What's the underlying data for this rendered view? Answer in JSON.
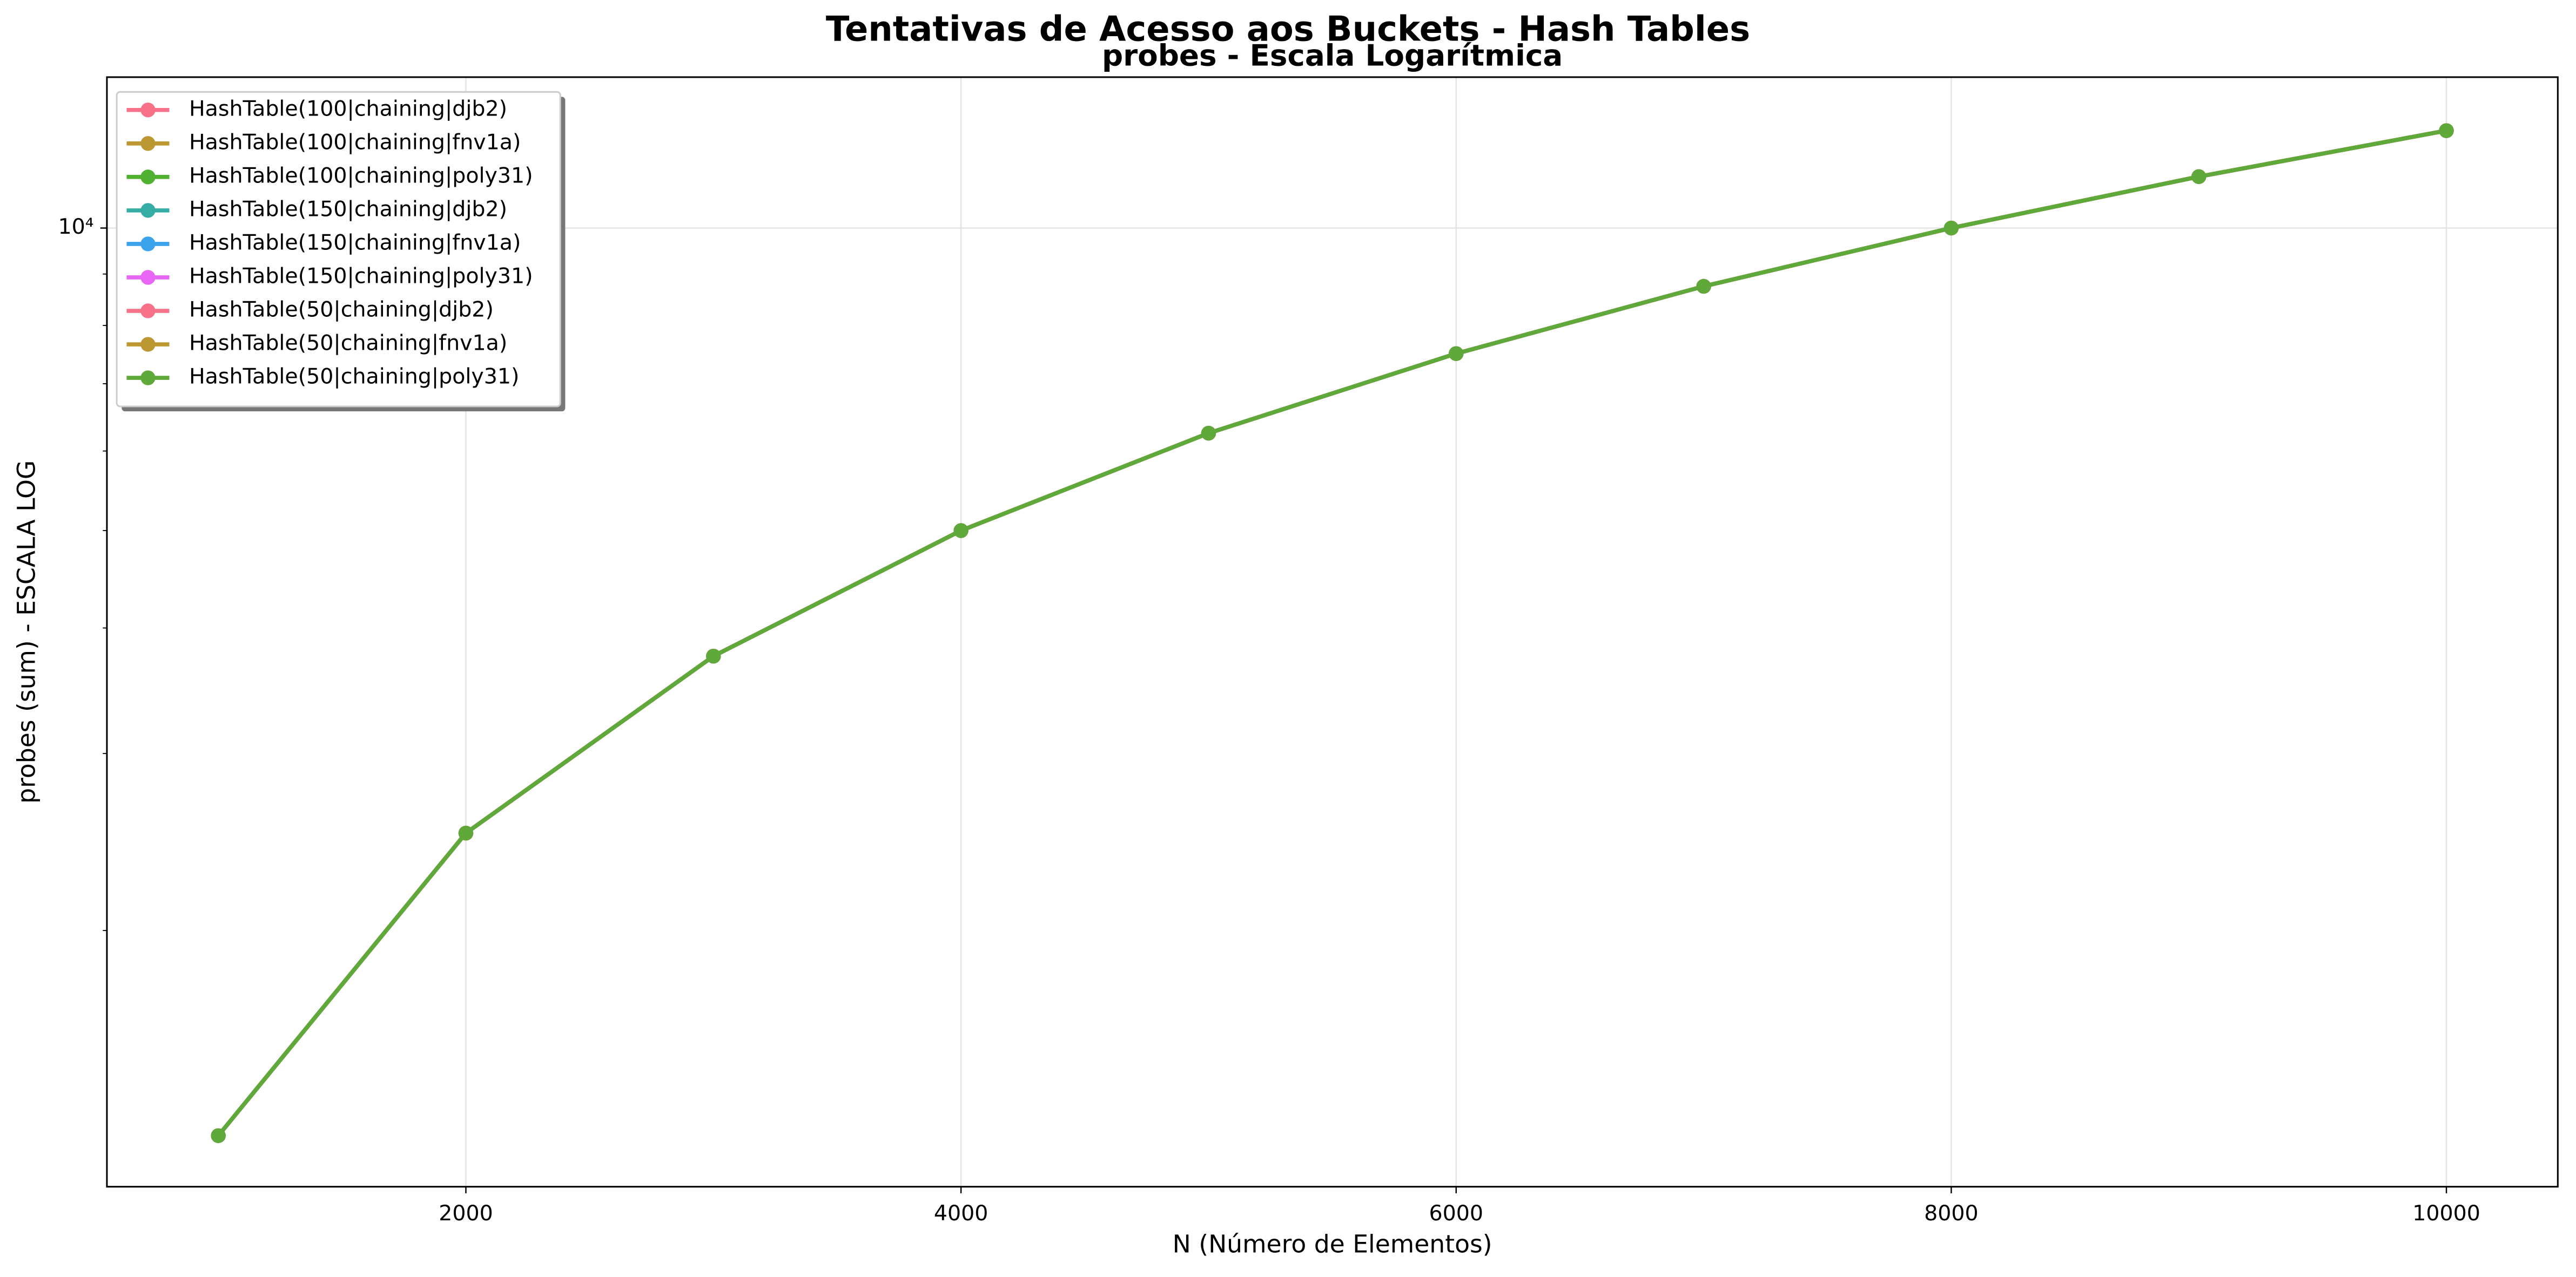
{
  "chart_data": {
    "type": "line",
    "title": "Tentativas de Acesso aos Buckets - Hash Tables",
    "subtitle": "probes - Escala Logarítmica",
    "x_label": "N (Número de Elementos)",
    "y_label": "probes (sum) - ESCALA LOG",
    "x": [
      1000,
      2000,
      3000,
      4000,
      5000,
      6000,
      7000,
      8000,
      9000,
      10000
    ],
    "series": [
      {
        "name": "HashTable(100|chaining|djb2)",
        "color": "#f77189",
        "values": [
          1250,
          2500,
          3750,
          5000,
          6250,
          7500,
          8750,
          10000,
          11250,
          12500
        ]
      },
      {
        "name": "HashTable(100|chaining|fnv1a)",
        "color": "#bb9832",
        "values": [
          1250,
          2500,
          3750,
          5000,
          6250,
          7500,
          8750,
          10000,
          11250,
          12500
        ]
      },
      {
        "name": "HashTable(100|chaining|poly31)",
        "color": "#50b131",
        "values": [
          1250,
          2500,
          3750,
          5000,
          6250,
          7500,
          8750,
          10000,
          11250,
          12500
        ]
      },
      {
        "name": "HashTable(150|chaining|djb2)",
        "color": "#36ada4",
        "values": [
          1250,
          2500,
          3750,
          5000,
          6250,
          7500,
          8750,
          10000,
          11250,
          12500
        ]
      },
      {
        "name": "HashTable(150|chaining|fnv1a)",
        "color": "#3ba3ec",
        "values": [
          1250,
          2500,
          3750,
          5000,
          6250,
          7500,
          8750,
          10000,
          11250,
          12500
        ]
      },
      {
        "name": "HashTable(150|chaining|poly31)",
        "color": "#e866f4",
        "values": [
          1250,
          2500,
          3750,
          5000,
          6250,
          7500,
          8750,
          10000,
          11250,
          12500
        ]
      },
      {
        "name": "HashTable(50|chaining|djb2)",
        "color": "#f77189",
        "values": [
          1250,
          2500,
          3750,
          5000,
          6250,
          7500,
          8750,
          10000,
          11250,
          12500
        ]
      },
      {
        "name": "HashTable(50|chaining|fnv1a)",
        "color": "#bb9832",
        "values": [
          1250,
          2500,
          3750,
          5000,
          6250,
          7500,
          8750,
          10000,
          11250,
          12500
        ]
      },
      {
        "name": "HashTable(50|chaining|poly31)",
        "color": "#5fa83a",
        "values": [
          1250,
          2500,
          3750,
          5000,
          6250,
          7500,
          8750,
          10000,
          11250,
          12500
        ]
      }
    ],
    "xlim": [
      550,
      10450
    ],
    "xticks": [
      2000,
      4000,
      6000,
      8000,
      10000
    ],
    "ylim": [
      1112,
      14130
    ],
    "y_log": true,
    "yticks": [
      {
        "value": 10000,
        "label": "10⁴"
      }
    ],
    "y_minor_ticks": [
      2000,
      3000,
      4000,
      5000,
      6000,
      7000,
      8000,
      9000
    ],
    "grid": true,
    "legend": "upper-left"
  }
}
